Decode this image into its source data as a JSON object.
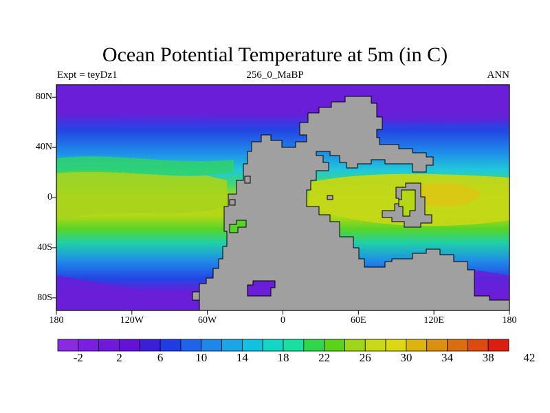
{
  "title": "Ocean Potential Temperature at 5m (in C)",
  "subtitle_left": "Expt = teyDz1",
  "subtitle_center": "256_0_MaBP",
  "subtitle_right": "ANN",
  "map": {
    "lon_range": [
      -180,
      180
    ],
    "lat_range": [
      -90,
      90
    ],
    "x_ticks": [
      {
        "lon": -180,
        "label": "180"
      },
      {
        "lon": -120,
        "label": "120W"
      },
      {
        "lon": -60,
        "label": "60W"
      },
      {
        "lon": 0,
        "label": "0"
      },
      {
        "lon": 60,
        "label": "60E"
      },
      {
        "lon": 120,
        "label": "120E"
      },
      {
        "lon": 180,
        "label": "180"
      }
    ],
    "y_ticks": [
      {
        "lat": 80,
        "label": "80N"
      },
      {
        "lat": 40,
        "label": "40N"
      },
      {
        "lat": 0,
        "label": "0"
      },
      {
        "lat": -40,
        "label": "40S"
      },
      {
        "lat": -80,
        "label": "80S"
      }
    ],
    "land_color": "#a0a0a0"
  },
  "colorbar": {
    "colors": [
      "#8a2be2",
      "#7a1fe0",
      "#7018dc",
      "#6512d8",
      "#3a1ed8",
      "#1f3ce6",
      "#1f63ea",
      "#1f86ea",
      "#18a6e6",
      "#10c2e0",
      "#12d6c8",
      "#18e0a0",
      "#2ed84a",
      "#5ad418",
      "#a0d618",
      "#c8da16",
      "#dcd814",
      "#dcb410",
      "#dc9010",
      "#dc6c10",
      "#dc4a10",
      "#dc1e10"
    ],
    "labels": [
      {
        "boundary": 1,
        "text": "-2"
      },
      {
        "boundary": 3,
        "text": "2"
      },
      {
        "boundary": 5,
        "text": "6"
      },
      {
        "boundary": 7,
        "text": "10"
      },
      {
        "boundary": 9,
        "text": "14"
      },
      {
        "boundary": 11,
        "text": "18"
      },
      {
        "boundary": 13,
        "text": "22"
      },
      {
        "boundary": 15,
        "text": "26"
      },
      {
        "boundary": 17,
        "text": "30"
      },
      {
        "boundary": 19,
        "text": "34"
      },
      {
        "boundary": 21,
        "text": "38"
      },
      {
        "boundary": 23,
        "text": "42"
      }
    ]
  }
}
